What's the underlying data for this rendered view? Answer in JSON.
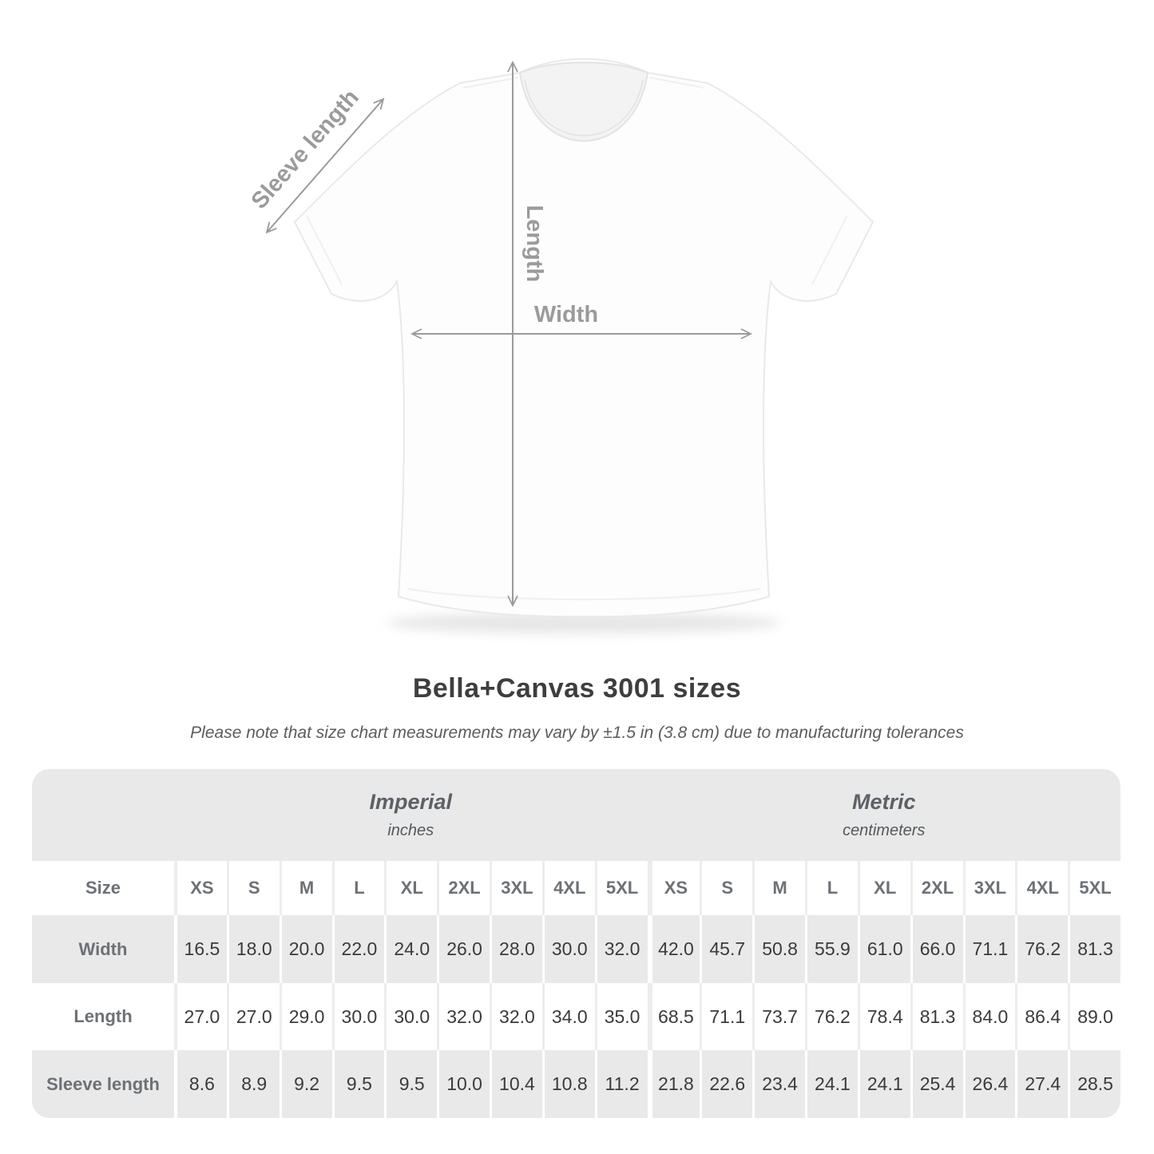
{
  "figure": {
    "labels": {
      "sleeve_length": "Sleeve length",
      "length": "Length",
      "width": "Width"
    },
    "arrow_color": "#9b9b9b",
    "shirt_color": "#fdfdfd"
  },
  "title": "Bella+Canvas 3001 sizes",
  "subtitle": "Please note that size chart measurements may vary by ±1.5 in (3.8 cm) due to manufacturing tolerances",
  "table": {
    "groups": [
      {
        "label": "Imperial",
        "unit": "inches"
      },
      {
        "label": "Metric",
        "unit": "centimeters"
      }
    ],
    "size_label": "Size",
    "sizes": [
      "XS",
      "S",
      "M",
      "L",
      "XL",
      "2XL",
      "3XL",
      "4XL",
      "5XL"
    ],
    "rows": [
      {
        "label": "Width",
        "imperial": [
          "16.5",
          "18.0",
          "20.0",
          "22.0",
          "24.0",
          "26.0",
          "28.0",
          "30.0",
          "32.0"
        ],
        "metric": [
          "42.0",
          "45.7",
          "50.8",
          "55.9",
          "61.0",
          "66.0",
          "71.1",
          "76.2",
          "81.3"
        ]
      },
      {
        "label": "Length",
        "imperial": [
          "27.0",
          "27.0",
          "29.0",
          "30.0",
          "30.0",
          "32.0",
          "32.0",
          "34.0",
          "35.0"
        ],
        "metric": [
          "68.5",
          "71.1",
          "73.7",
          "76.2",
          "78.4",
          "81.3",
          "84.0",
          "86.4",
          "89.0"
        ]
      },
      {
        "label": "Sleeve length",
        "imperial": [
          "8.6",
          "8.9",
          "9.2",
          "9.5",
          "9.5",
          "10.0",
          "10.4",
          "10.8",
          "11.2"
        ],
        "metric": [
          "21.8",
          "22.6",
          "23.4",
          "24.1",
          "24.1",
          "25.4",
          "26.4",
          "27.4",
          "28.5"
        ]
      }
    ]
  },
  "colors": {
    "table_shade": "#e9e9e9",
    "data_text": "#3b3b3b",
    "label_text": "#6d7175",
    "annotation": "#9b9b9b"
  },
  "chart_data": {
    "type": "table",
    "title": "Bella+Canvas 3001 sizes",
    "column_groups": [
      "Imperial (inches)",
      "Metric (centimeters)"
    ],
    "columns": [
      "Size",
      "XS",
      "S",
      "M",
      "L",
      "XL",
      "2XL",
      "3XL",
      "4XL",
      "5XL",
      "XS",
      "S",
      "M",
      "L",
      "XL",
      "2XL",
      "3XL",
      "4XL",
      "5XL"
    ],
    "rows": [
      [
        "Width",
        "16.5",
        "18.0",
        "20.0",
        "22.0",
        "24.0",
        "26.0",
        "28.0",
        "30.0",
        "32.0",
        "42.0",
        "45.7",
        "50.8",
        "55.9",
        "61.0",
        "66.0",
        "71.1",
        "76.2",
        "81.3"
      ],
      [
        "Length",
        "27.0",
        "27.0",
        "29.0",
        "30.0",
        "30.0",
        "32.0",
        "32.0",
        "34.0",
        "35.0",
        "68.5",
        "71.1",
        "73.7",
        "76.2",
        "78.4",
        "81.3",
        "84.0",
        "86.4",
        "89.0"
      ],
      [
        "Sleeve length",
        "8.6",
        "8.9",
        "9.2",
        "9.5",
        "9.5",
        "10.0",
        "10.4",
        "10.8",
        "11.2",
        "21.8",
        "22.6",
        "23.4",
        "24.1",
        "24.1",
        "25.4",
        "26.4",
        "27.4",
        "28.5"
      ]
    ]
  }
}
